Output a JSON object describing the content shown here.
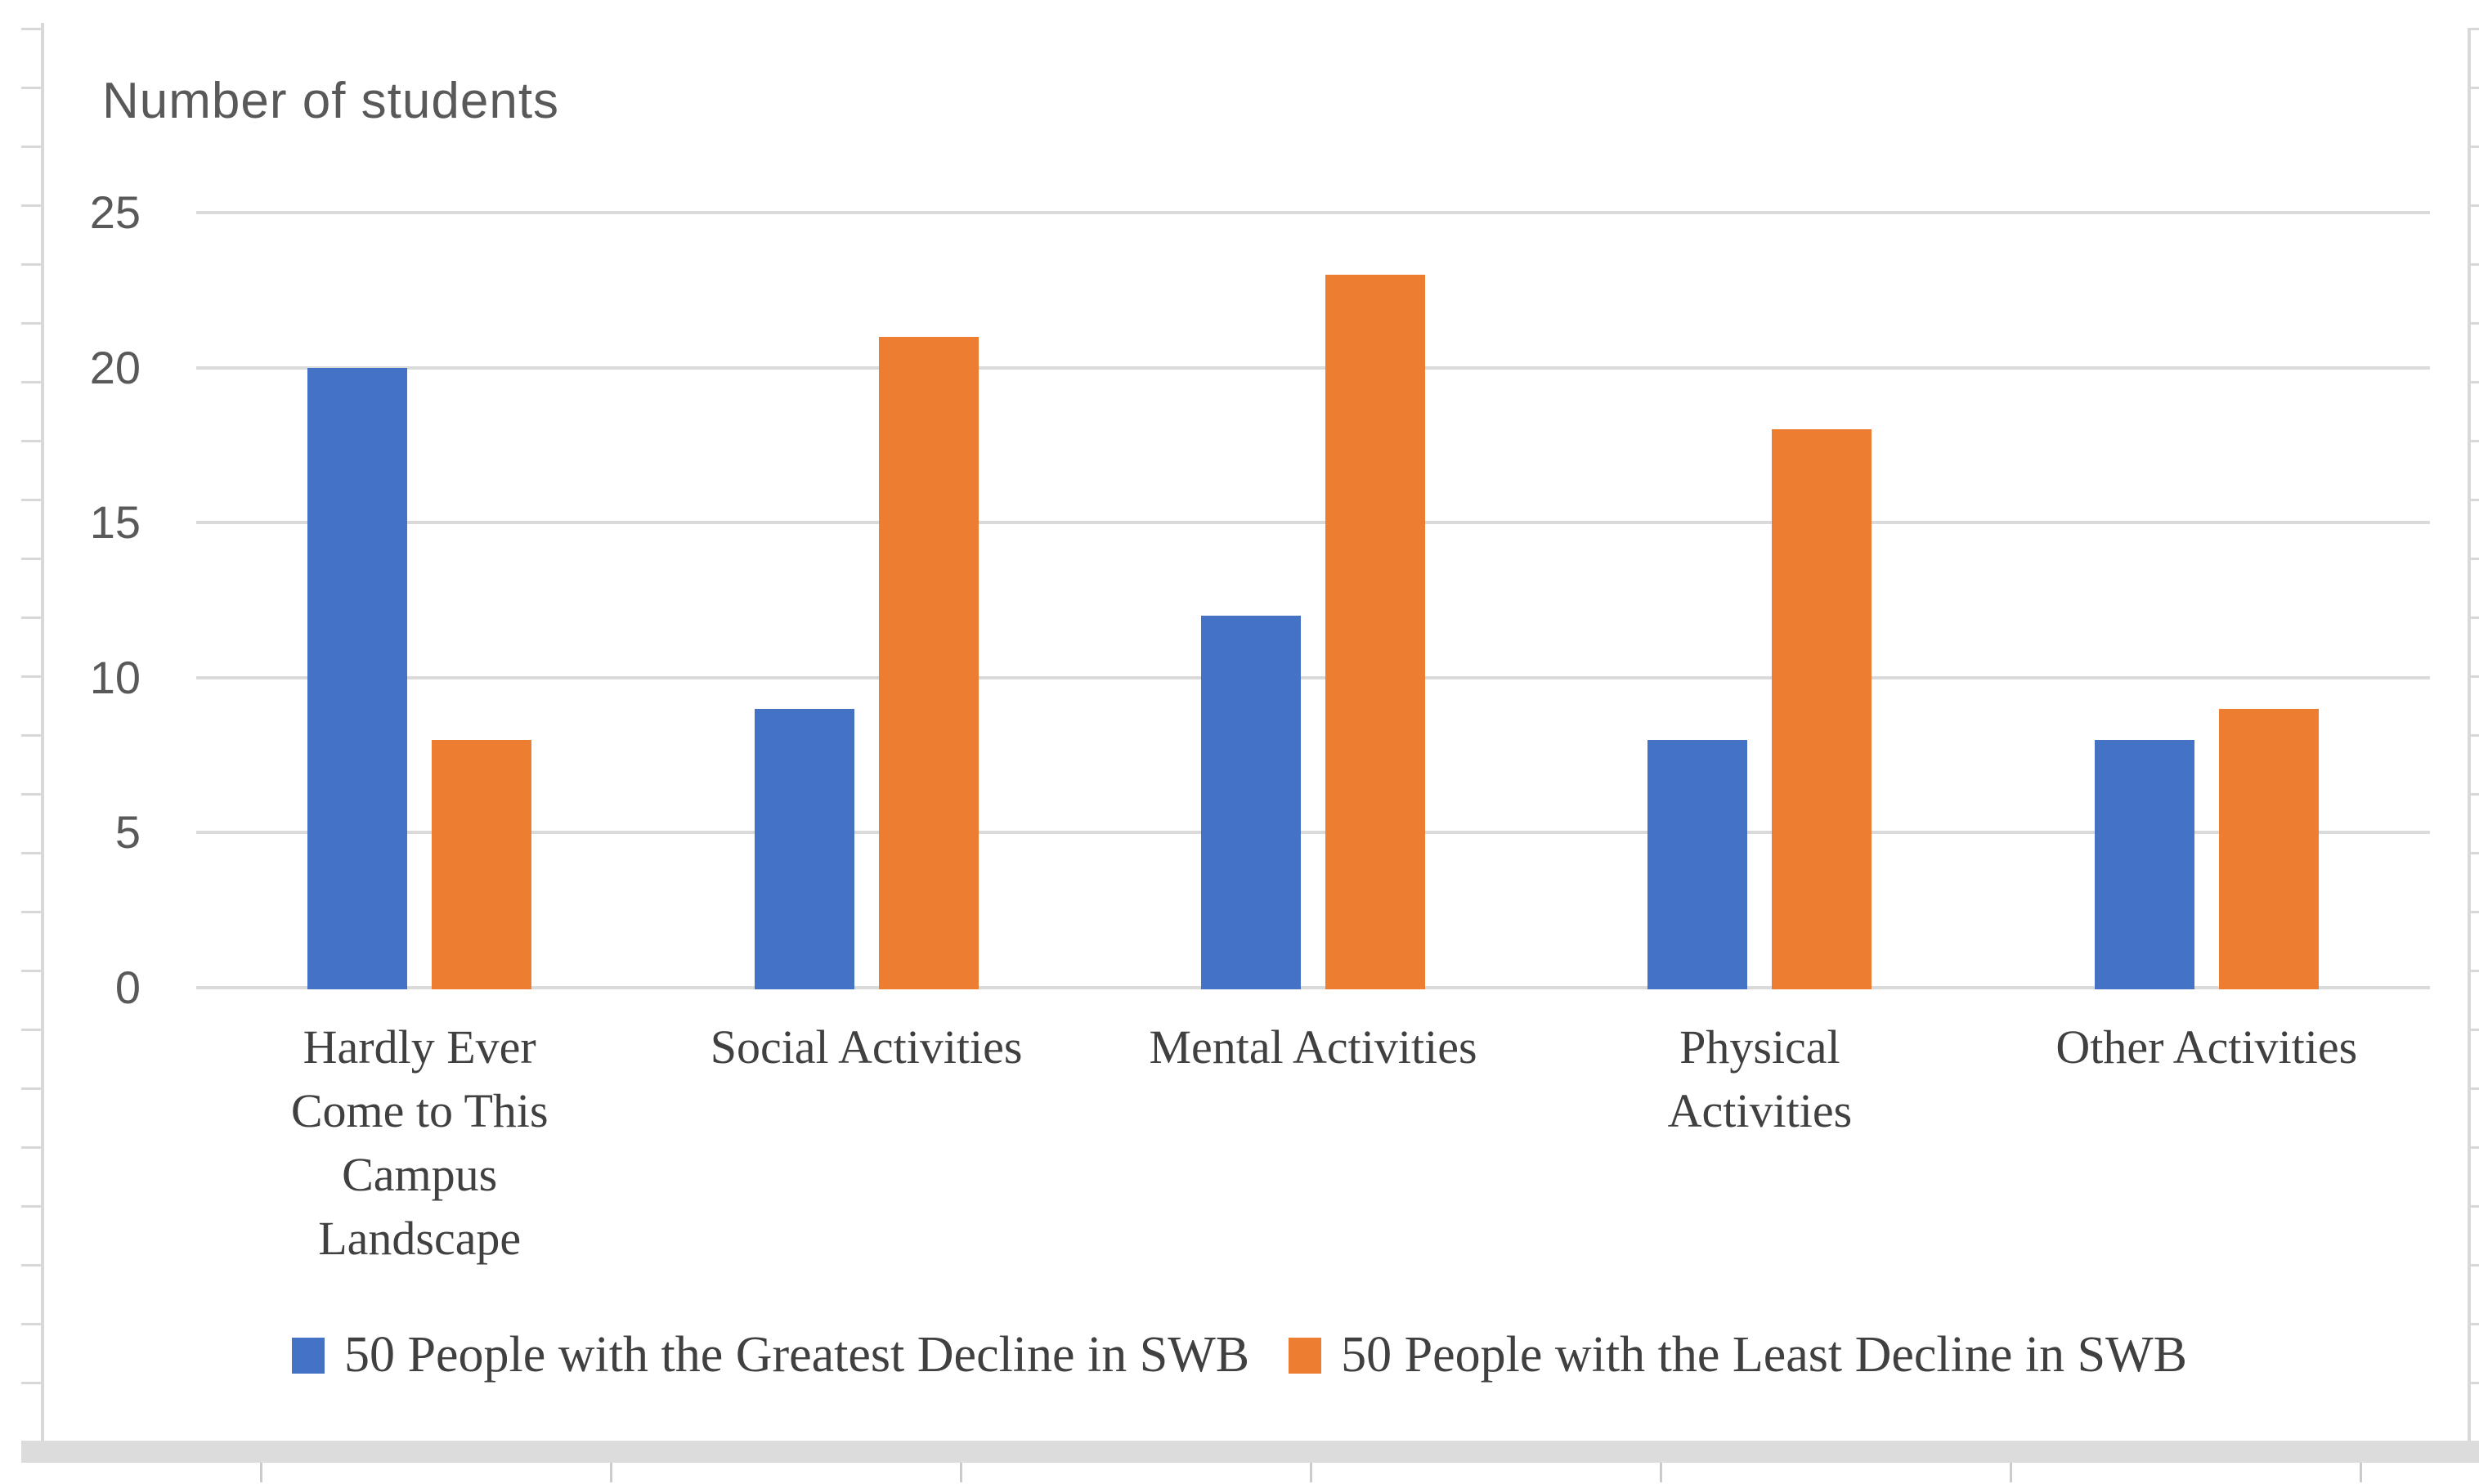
{
  "chart_data": {
    "type": "bar",
    "title": "Number of students",
    "categories": [
      "Hardly Ever Come to This Campus Landscape",
      "Social Activities",
      "Mental Activities",
      "Physical Activities",
      "Other Activities"
    ],
    "category_label_lines": [
      [
        "Hardly Ever",
        "Come to This",
        "Campus",
        "Landscape"
      ],
      [
        "Social Activities"
      ],
      [
        "Mental Activities"
      ],
      [
        "Physical",
        "Activities"
      ],
      [
        "Other Activities"
      ]
    ],
    "series": [
      {
        "name": "50 People with the Greatest Decline in SWB",
        "color": "#4472C4",
        "values": [
          20,
          9,
          12,
          8,
          8
        ]
      },
      {
        "name": "50 People with the Least Decline in SWB",
        "color": "#ED7D31",
        "values": [
          8,
          21,
          23,
          18,
          9
        ]
      }
    ],
    "ylim": [
      0,
      25
    ],
    "y_ticks": [
      0,
      5,
      10,
      15,
      20,
      25
    ],
    "y_tick_labels": [
      "0",
      "5",
      "10",
      "15",
      "20",
      "25"
    ],
    "grid": true,
    "legend_position": "bottom",
    "colors": {
      "gridline": "#DADADA",
      "axis_text": "#595959",
      "label_text": "#404040",
      "worksheet_line": "#D8D8D8"
    }
  }
}
